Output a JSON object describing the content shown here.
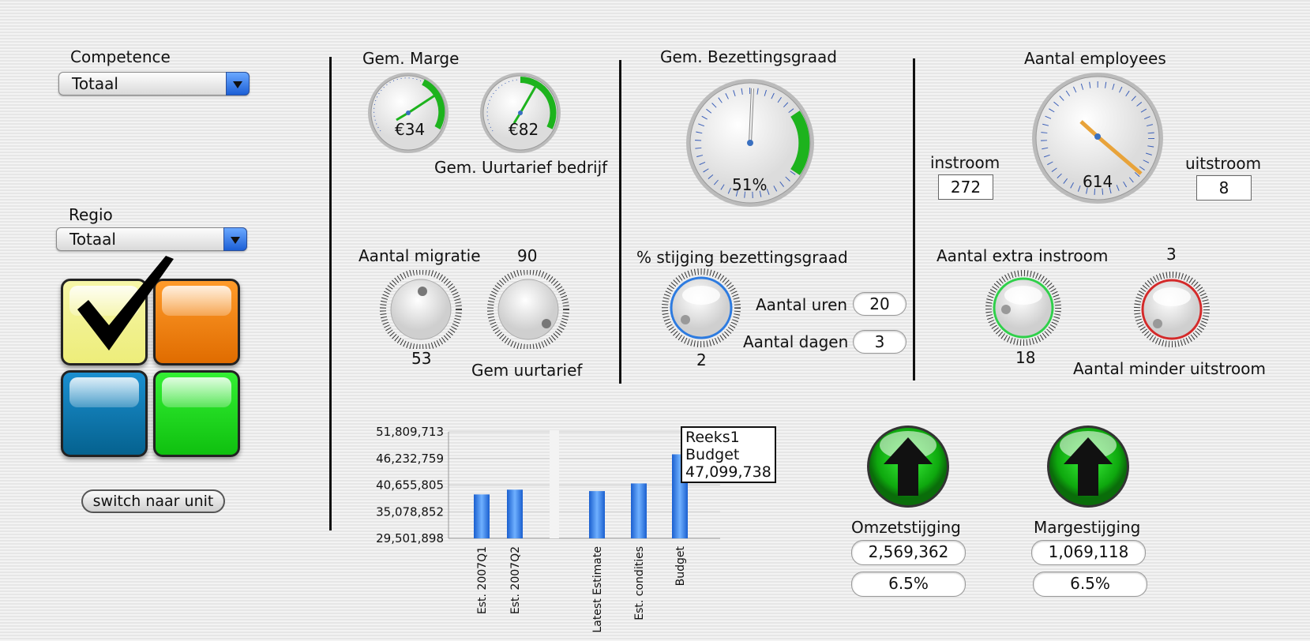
{
  "filters": {
    "competence": {
      "label": "Competence",
      "value": "Totaal"
    },
    "regio": {
      "label": "Regio",
      "value": "Totaal"
    },
    "switch_label": "switch naar unit"
  },
  "marge": {
    "title": "Gem. Marge",
    "gauge1_value": "€34",
    "gauge2_value": "€82",
    "gauge2_label": "Gem. Uurtarief bedrijf"
  },
  "migratie": {
    "label": "Aantal migratie",
    "value": "53",
    "uurtarief_label": "Gem uurtarief",
    "uurtarief_value": "90"
  },
  "bezetting": {
    "title": "Gem. Bezettingsgraad",
    "value": "51%",
    "stijging_label": "% stijging bezettingsgraad",
    "stijging_value": "2",
    "uren_label": "Aantal uren",
    "uren_value": "20",
    "dagen_label": "Aantal dagen",
    "dagen_value": "3"
  },
  "employees": {
    "title": "Aantal employees",
    "value": "614",
    "instroom_label": "instroom",
    "instroom_value": "272",
    "uitstroom_label": "uitstroom",
    "uitstroom_value": "8",
    "extra_label": "Aantal extra instroom",
    "extra_value": "18",
    "minder_label": "Aantal minder uitstroom",
    "minder_value": "3"
  },
  "results": {
    "omzet_label": "Omzetstijging",
    "omzet_value": "2,569,362",
    "omzet_pct": "6.5%",
    "marge_label": "Margestijging",
    "marge_value": "1,069,118",
    "marge_pct": "6.5%"
  },
  "colors": {
    "green": "#1db31d",
    "accent_blue": "#2d7be0",
    "needle_orange": "#e8a33a"
  },
  "chart_data": {
    "type": "bar",
    "categories": [
      "Est. 2007Q1",
      "Est. 2007Q2",
      "Latest Estimate",
      "Est. condities",
      "Budget"
    ],
    "values": [
      38700000,
      39700000,
      39400000,
      41000000,
      47099738
    ],
    "ylim": [
      29501898,
      51809713
    ],
    "yticks": [
      "51,809,713",
      "46,232,759",
      "40,655,805",
      "35,078,852",
      "29,501,898"
    ],
    "tooltip": {
      "series": "Reeks1",
      "category": "Budget",
      "value": "47,099,738"
    }
  }
}
